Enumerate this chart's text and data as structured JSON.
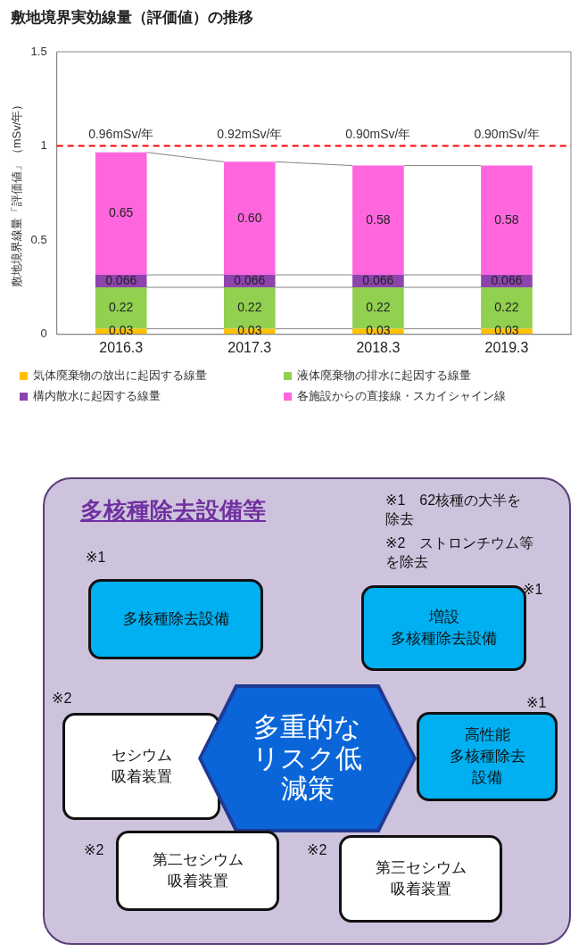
{
  "chart_data": [
    {
      "type": "bar",
      "stacked": true,
      "title": "敷地境界実効線量（評価値）の推移",
      "ylabel": "敷地境界線量「評価値」（mSv/年）",
      "categories": [
        "2016.3",
        "2017.3",
        "2018.3",
        "2019.3"
      ],
      "series": [
        {
          "name": "気体廃棄物の放出に起因する線量",
          "color": "#ffc000",
          "values": [
            0.03,
            0.03,
            0.03,
            0.03
          ],
          "value_labels": [
            "0.03",
            "0.03",
            "0.03",
            "0.03"
          ]
        },
        {
          "name": "液体廃棄物の排水に起因する線量",
          "color": "#92d050",
          "values": [
            0.22,
            0.22,
            0.22,
            0.22
          ],
          "value_labels": [
            "0.22",
            "0.22",
            "0.22",
            "0.22"
          ]
        },
        {
          "name": "構内散水に起因する線量",
          "color": "#8e44ad",
          "values": [
            0.066,
            0.066,
            0.066,
            0.066
          ],
          "value_labels": [
            "0.066",
            "0.066",
            "0.066",
            "0.066"
          ]
        },
        {
          "name": "各施設からの直接線・スカイシャイン線",
          "color": "#ff66dd",
          "values": [
            0.65,
            0.6,
            0.58,
            0.58
          ],
          "value_labels": [
            "0.65",
            "0.60",
            "0.58",
            "0.58"
          ]
        }
      ],
      "totals": [
        "0.96mSv/年",
        "0.92mSv/年",
        "0.90mSv/年",
        "0.90mSv/年"
      ],
      "ylim": [
        0,
        1.5
      ],
      "yticks": [
        0,
        0.5,
        1,
        1.5
      ],
      "grid": false,
      "legend": "bottom",
      "ref_lines": [
        {
          "axis": "y",
          "value": 1,
          "color": "#ff0000",
          "line_style": "dashed"
        }
      ]
    },
    {
      "type": "other",
      "title": "多核種除去設備等",
      "annotations": [
        "※1　62核種の大半を除去",
        "※2　ストロンチウム等を除去",
        "※1",
        "多核種除去設備",
        "※1",
        "増設多核種除去設備",
        "※2",
        "セシウム吸着装置",
        "多重的なリスク低減策",
        "※1",
        "高性能多核種除去設備",
        "※2",
        "第二セシウム吸着装置",
        "※2",
        "第三セシウム吸着装置"
      ]
    }
  ]
}
